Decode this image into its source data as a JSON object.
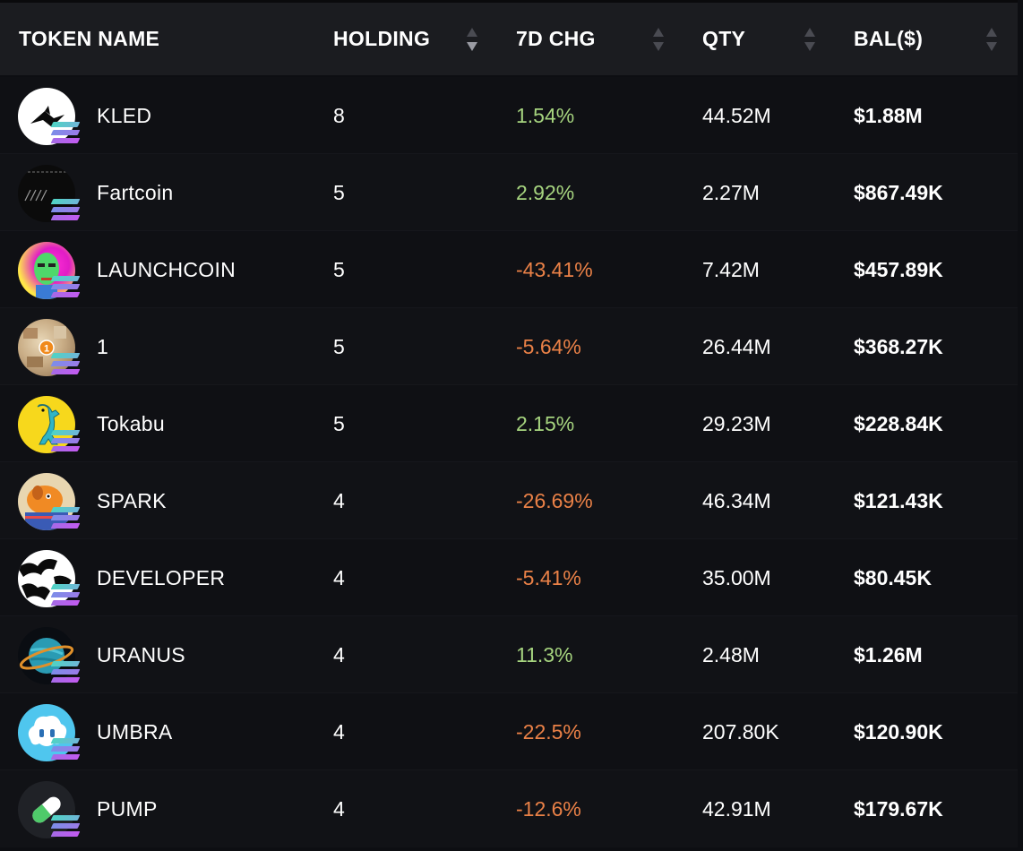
{
  "header": {
    "token_name": "TOKEN NAME",
    "holding": "HOLDING",
    "change_7d": "7D CHG",
    "qty": "QTY",
    "balance": "BAL($)"
  },
  "colors": {
    "positive": "#a6d47f",
    "negative": "#ea8147",
    "header_bg": "#1b1c20",
    "row_bg": "#0f1014"
  },
  "rows": [
    {
      "name": "KLED",
      "holding": "8",
      "change": "1.54%",
      "direction": "pos",
      "qty": "44.52M",
      "balance": "$1.88M",
      "icon": "kled-logo-icon"
    },
    {
      "name": "Fartcoin",
      "holding": "5",
      "change": "2.92%",
      "direction": "pos",
      "qty": "2.27M",
      "balance": "$867.49K",
      "icon": "fartcoin-logo-icon"
    },
    {
      "name": "LAUNCHCOIN",
      "holding": "5",
      "change": "-43.41%",
      "direction": "neg",
      "qty": "7.42M",
      "balance": "$457.89K",
      "icon": "launchcoin-logo-icon"
    },
    {
      "name": "1",
      "holding": "5",
      "change": "-5.64%",
      "direction": "neg",
      "qty": "26.44M",
      "balance": "$368.27K",
      "icon": "one-token-logo-icon"
    },
    {
      "name": "Tokabu",
      "holding": "5",
      "change": "2.15%",
      "direction": "pos",
      "qty": "29.23M",
      "balance": "$228.84K",
      "icon": "tokabu-logo-icon"
    },
    {
      "name": "SPARK",
      "holding": "4",
      "change": "-26.69%",
      "direction": "neg",
      "qty": "46.34M",
      "balance": "$121.43K",
      "icon": "spark-logo-icon"
    },
    {
      "name": "DEVELOPER",
      "holding": "4",
      "change": "-5.41%",
      "direction": "neg",
      "qty": "35.00M",
      "balance": "$80.45K",
      "icon": "developer-logo-icon"
    },
    {
      "name": "URANUS",
      "holding": "4",
      "change": "11.3%",
      "direction": "pos",
      "qty": "2.48M",
      "balance": "$1.26M",
      "icon": "uranus-logo-icon"
    },
    {
      "name": "UMBRA",
      "holding": "4",
      "change": "-22.5%",
      "direction": "neg",
      "qty": "207.80K",
      "balance": "$120.90K",
      "icon": "umbra-logo-icon"
    },
    {
      "name": "PUMP",
      "holding": "4",
      "change": "-12.6%",
      "direction": "neg",
      "qty": "42.91M",
      "balance": "$179.67K",
      "icon": "pump-logo-icon"
    }
  ]
}
